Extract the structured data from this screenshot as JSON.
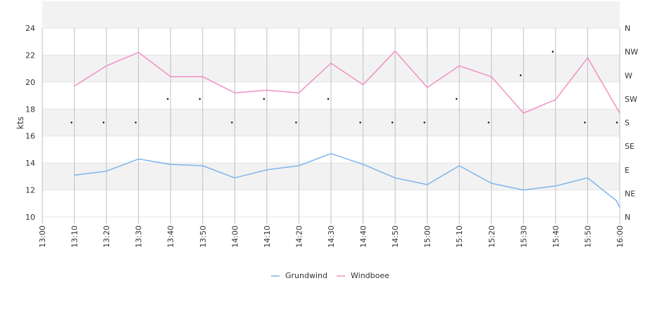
{
  "chart_data": {
    "type": "line",
    "ylabel": "kts",
    "ylim": [
      10,
      24
    ],
    "y_ticks": [
      "10",
      "12",
      "14",
      "16",
      "18",
      "20",
      "22",
      "24"
    ],
    "x_ticks": [
      "13:00",
      "13:10",
      "13:20",
      "13:30",
      "13:40",
      "13:50",
      "14:00",
      "14:10",
      "14:20",
      "14:30",
      "14:40",
      "14:50",
      "15:00",
      "15:10",
      "15:20",
      "15:30",
      "15:40",
      "15:50",
      "16:00"
    ],
    "right_axis_ticks": [
      "N",
      "NE",
      "E",
      "SE",
      "S",
      "SW",
      "W",
      "NW",
      "N"
    ],
    "grid": true,
    "legend_position": "bottom-center",
    "series": [
      {
        "name": "Grundwind",
        "color": "#7cb5ec",
        "x": [
          "13:10",
          "13:20",
          "13:30",
          "13:40",
          "13:50",
          "14:00",
          "14:10",
          "14:20",
          "14:30",
          "14:40",
          "14:50",
          "15:00",
          "15:10",
          "15:20",
          "15:30",
          "15:40",
          "15:50",
          "15:59",
          "16:00"
        ],
        "values": [
          13.1,
          13.4,
          14.3,
          13.9,
          13.8,
          12.9,
          13.5,
          13.8,
          14.7,
          13.9,
          12.9,
          12.4,
          13.8,
          12.5,
          12.0,
          12.3,
          12.9,
          11.2,
          10.7
        ]
      },
      {
        "name": "Windboee",
        "color": "#f190c3",
        "x": [
          "13:10",
          "13:20",
          "13:30",
          "13:40",
          "13:50",
          "14:00",
          "14:10",
          "14:20",
          "14:30",
          "14:40",
          "14:50",
          "15:00",
          "15:10",
          "15:20",
          "15:30",
          "15:40",
          "15:50",
          "16:00"
        ],
        "values": [
          19.7,
          21.2,
          22.2,
          20.4,
          20.4,
          19.2,
          19.4,
          19.2,
          21.4,
          19.8,
          22.3,
          19.6,
          21.2,
          20.4,
          17.7,
          18.7,
          21.8,
          17.7
        ]
      }
    ],
    "direction_points": {
      "x": [
        "13:10",
        "13:20",
        "13:30",
        "13:40",
        "13:50",
        "14:00",
        "14:10",
        "14:20",
        "14:30",
        "14:40",
        "14:50",
        "15:00",
        "15:10",
        "15:20",
        "15:30",
        "15:40",
        "15:50",
        "16:00"
      ],
      "values": [
        "S",
        "S",
        "S",
        "SW",
        "SW",
        "S",
        "SW",
        "S",
        "SW",
        "S",
        "S",
        "S",
        "SW",
        "S",
        "W",
        "NW",
        "S",
        "S"
      ],
      "color": "#000000"
    }
  }
}
